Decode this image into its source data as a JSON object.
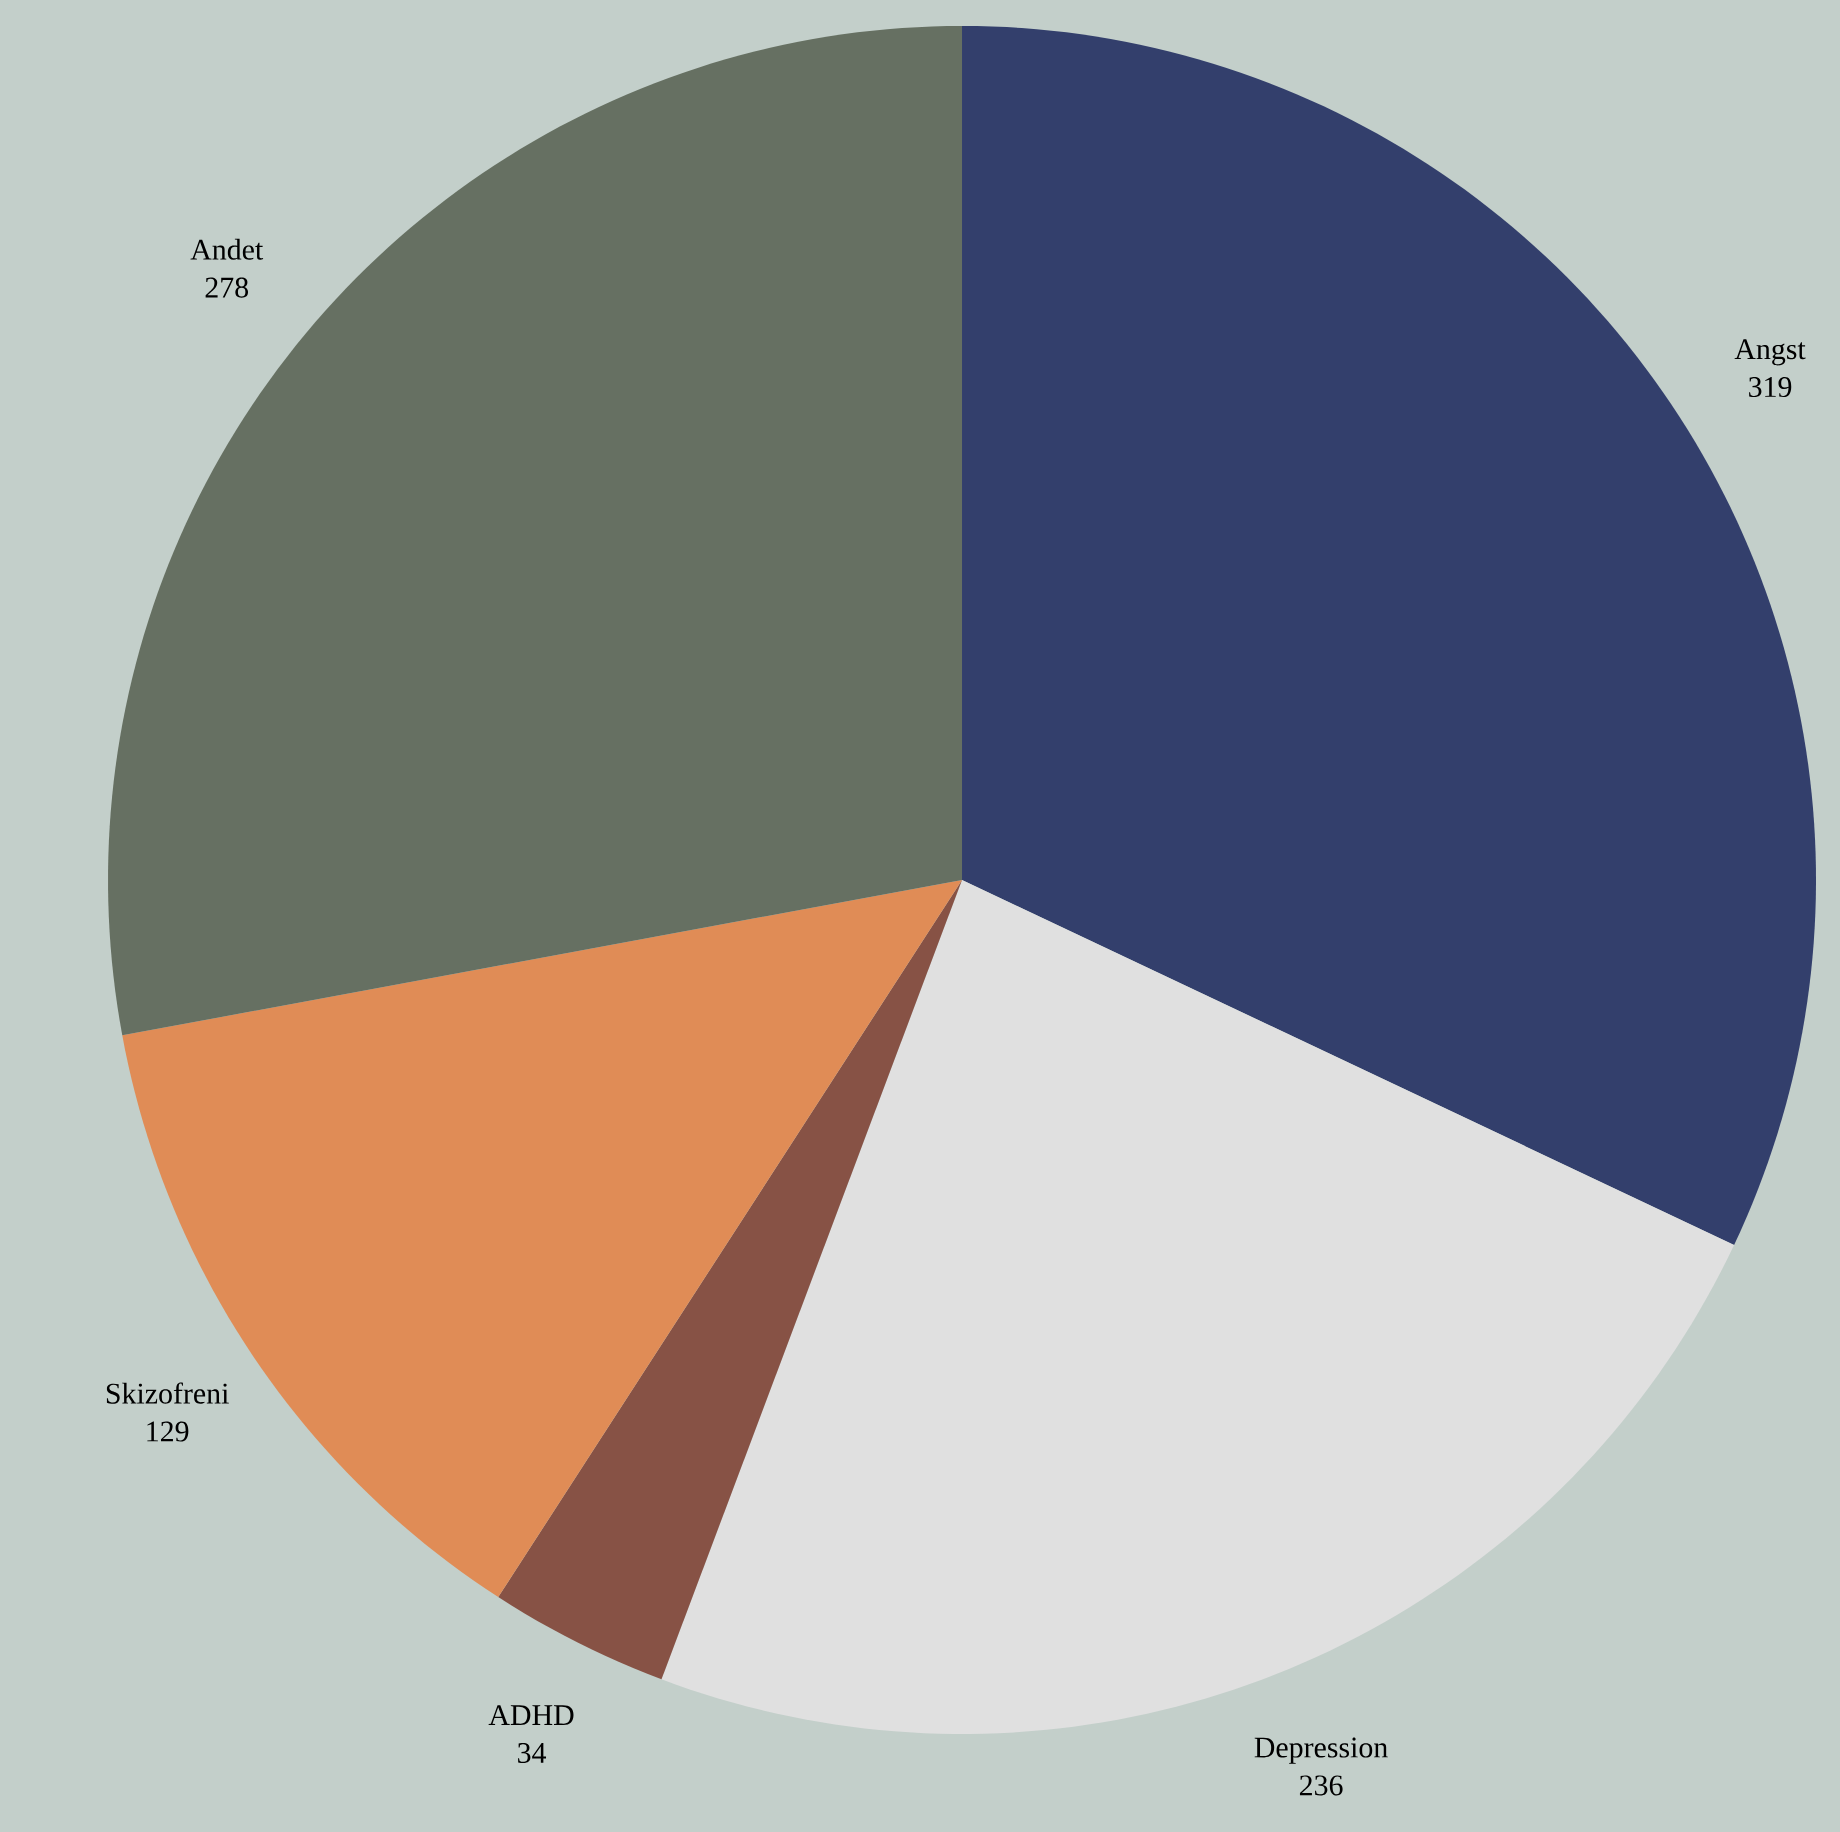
{
  "chart_data": {
    "type": "pie",
    "categories": [
      "Angst",
      "Depression",
      "ADHD",
      "Skizofreni",
      "Andet"
    ],
    "values": [
      319,
      236,
      34,
      129,
      278
    ],
    "colors": [
      "#333f6c",
      "#e0e0e0",
      "#875245",
      "#e08c56",
      "#667062"
    ],
    "data_labels": true
  }
}
